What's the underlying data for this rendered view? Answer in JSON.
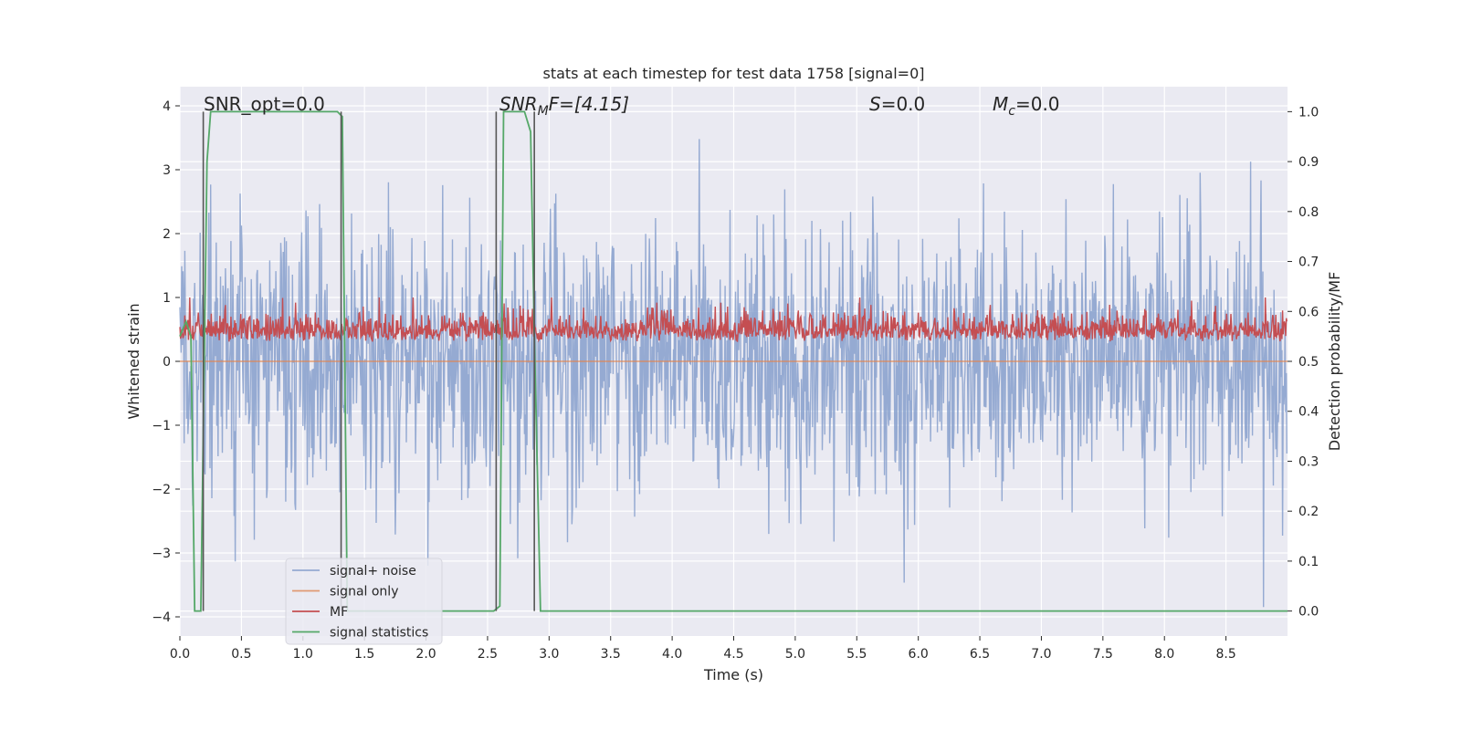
{
  "chart_data": {
    "type": "line",
    "title": "stats at each timestep for test data 1758 [signal=0]",
    "xlabel": "Time (s)",
    "ylabel": "Whitened strain",
    "y2label": "Detection probability/MF",
    "xlim": [
      0,
      9
    ],
    "ylim": [
      -4.3,
      4.3
    ],
    "y2lim": [
      -0.05,
      1.05
    ],
    "xticks": [
      0.0,
      0.5,
      1.0,
      1.5,
      2.0,
      2.5,
      3.0,
      3.5,
      4.0,
      4.5,
      5.0,
      5.5,
      6.0,
      6.5,
      7.0,
      7.5,
      8.0,
      8.5
    ],
    "yticks": [
      -4,
      -3,
      -2,
      -1,
      0,
      1,
      2,
      3,
      4
    ],
    "y2ticks": [
      0.0,
      0.1,
      0.2,
      0.3,
      0.4,
      0.5,
      0.6,
      0.7,
      0.8,
      0.9,
      1.0
    ],
    "xtick_labels": [
      "0.0",
      "0.5",
      "1.0",
      "1.5",
      "2.0",
      "2.5",
      "3.0",
      "3.5",
      "4.0",
      "4.5",
      "5.0",
      "5.5",
      "6.0",
      "6.5",
      "7.0",
      "7.5",
      "8.0",
      "8.5"
    ],
    "ytick_labels": [
      "−4",
      "−3",
      "−2",
      "−1",
      "0",
      "1",
      "2",
      "3",
      "4"
    ],
    "y2tick_labels": [
      "0.0",
      "0.1",
      "0.2",
      "0.3",
      "0.4",
      "0.5",
      "0.6",
      "0.7",
      "0.8",
      "0.9",
      "1.0"
    ],
    "grid": true,
    "legend_placement": "lower-left",
    "colors": {
      "plot_bg": "#eaeaf2",
      "grid": "#ffffff",
      "signal_noise": "#7f9ac9",
      "signal_only": "#dd8452",
      "mf": "#c44e52",
      "stats": "#55a868",
      "vline": "#555555"
    },
    "annotations": {
      "snr_opt": "SNR_opt=0.0",
      "snr_mf_main": "SNR",
      "snr_mf_sub": "M",
      "snr_mf_rest": "F=[4.15]",
      "s_main": "S",
      "s_rest": "=0.0",
      "mc_main": "M",
      "mc_sub": "c",
      "mc_rest": "=0.0"
    },
    "series": [
      {
        "name": "signal+ noise",
        "axis": "left",
        "description_stats": {
          "sample_rate_hz": 200,
          "typical_range": [
            -2.5,
            2.5
          ],
          "max": 3.9,
          "min": -4.0
        },
        "style": "line"
      },
      {
        "name": "signal only",
        "axis": "left",
        "values_constant": 0.0,
        "style": "line"
      },
      {
        "name": "MF",
        "axis": "left",
        "typical_range": [
          0.0,
          1.0
        ],
        "style": "line"
      },
      {
        "name": "signal statistics",
        "axis": "right",
        "x": [
          0.0,
          0.05,
          0.09,
          0.12,
          0.17,
          0.22,
          0.25,
          1.28,
          1.32,
          1.36,
          2.55,
          2.6,
          2.63,
          2.8,
          2.85,
          2.88,
          2.93,
          9.0
        ],
        "y": [
          0.55,
          0.58,
          0.55,
          0.0,
          0.0,
          0.9,
          1.0,
          1.0,
          0.99,
          0.0,
          0.0,
          0.01,
          1.0,
          1.0,
          0.96,
          0.55,
          0.0,
          0.0
        ]
      }
    ],
    "vlines": [
      0.19,
      1.31,
      2.57,
      2.88
    ]
  }
}
